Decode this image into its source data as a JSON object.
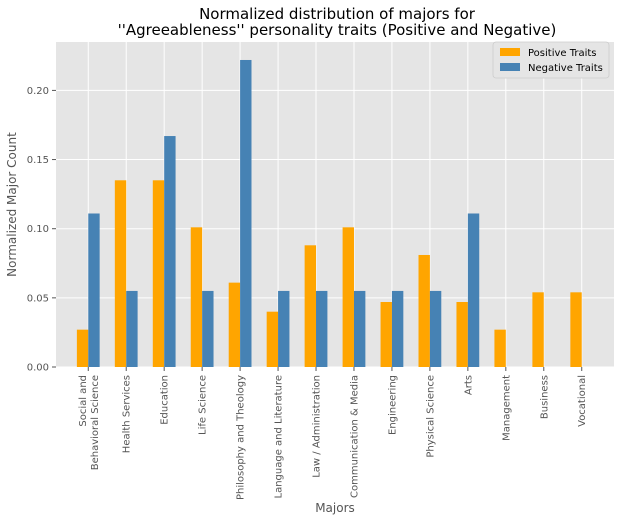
{
  "chart_data": {
    "type": "bar",
    "title": [
      "Normalized distribution of majors for",
      "''Agreeableness'' personality traits (Positive and Negative)"
    ],
    "xlabel": "Majors",
    "ylabel": "Normalized Major Count",
    "ylim": [
      0,
      0.235
    ],
    "yticks": [
      "0.00",
      "0.05",
      "0.10",
      "0.15",
      "0.20"
    ],
    "ytick_values": [
      0,
      0.05,
      0.1,
      0.15,
      0.2
    ],
    "grid": true,
    "legend_position": "top-right",
    "categories": [
      [
        "Social and",
        "Behavioral Science"
      ],
      [
        "Health Services"
      ],
      [
        "Education"
      ],
      [
        "Life Science"
      ],
      [
        "Philosophy and Theology"
      ],
      [
        "Language and Literature"
      ],
      [
        "Law / Administration"
      ],
      [
        "Communication & Media"
      ],
      [
        "Engineering"
      ],
      [
        "Physical Science"
      ],
      [
        "Arts"
      ],
      [
        "Management"
      ],
      [
        "Business"
      ],
      [
        "Vocational"
      ]
    ],
    "series": [
      {
        "name": "Positive Traits",
        "color": "#FFA500",
        "values": [
          0.027,
          0.135,
          0.135,
          0.101,
          0.061,
          0.04,
          0.088,
          0.101,
          0.047,
          0.081,
          0.047,
          0.027,
          0.054,
          0.054
        ]
      },
      {
        "name": "Negative Traits",
        "color": "#4682B4",
        "values": [
          0.111,
          0.055,
          0.167,
          0.055,
          0.222,
          0.055,
          0.055,
          0.055,
          0.055,
          0.055,
          0.111,
          0,
          0,
          0
        ]
      }
    ],
    "plot_background": "#E5E5E5",
    "grid_color": "#FFFFFF"
  }
}
